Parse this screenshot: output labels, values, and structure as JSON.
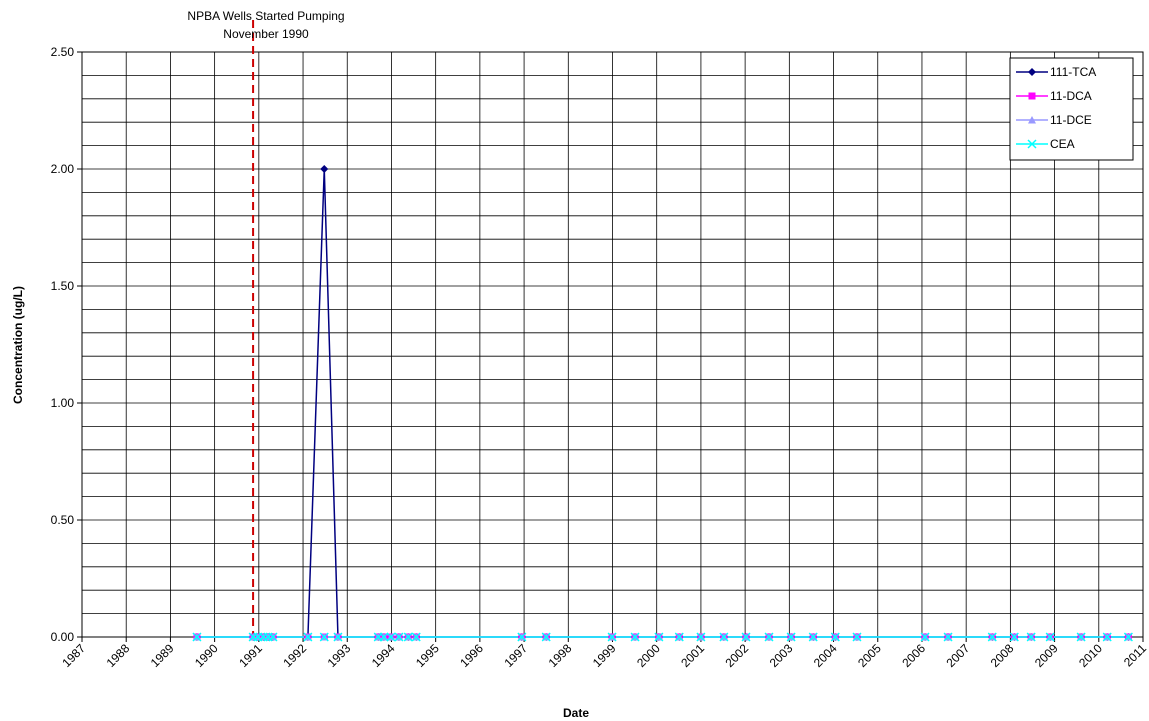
{
  "chart_data": {
    "type": "line",
    "xlabel": "Date",
    "ylabel": "Concentration (ug/L)",
    "x": [
      1989.6,
      1990.87,
      1990.98,
      1991.1,
      1991.21,
      1991.32,
      1992.11,
      1992.48,
      1992.79,
      1993.7,
      1993.83,
      1993.99,
      1994.17,
      1994.38,
      1994.56,
      1996.95,
      1997.5,
      1998.99,
      1999.51,
      2000.05,
      2000.51,
      2001.0,
      2001.52,
      2002.02,
      2002.54,
      2003.04,
      2003.54,
      2004.04,
      2004.53,
      2006.07,
      2006.59,
      2007.59,
      2008.09,
      2008.47,
      2008.9,
      2009.6,
      2010.19,
      2010.67
    ],
    "series": [
      {
        "name": "111-TCA",
        "color": "#000080",
        "marker": "diamond",
        "values": [
          0,
          0,
          0,
          0,
          0,
          0,
          0,
          2,
          0,
          0,
          0,
          0,
          0,
          0,
          0,
          0,
          0,
          0,
          0,
          0,
          0,
          0,
          0,
          0,
          0,
          0,
          0,
          0,
          0,
          0,
          0,
          0,
          0,
          0,
          0,
          0,
          0,
          0
        ]
      },
      {
        "name": "11-DCA",
        "color": "#ff00ff",
        "marker": "square",
        "values": [
          0,
          0,
          0,
          0,
          0,
          0,
          0,
          0,
          0,
          0,
          0,
          0,
          0,
          0,
          0,
          0,
          0,
          0,
          0,
          0,
          0,
          0,
          0,
          0,
          0,
          0,
          0,
          0,
          0,
          0,
          0,
          0,
          0,
          0,
          0,
          0,
          0,
          0
        ]
      },
      {
        "name": "11-DCE",
        "color": "#9999ff",
        "marker": "triangle",
        "values": [
          0,
          0,
          0,
          0,
          0,
          0,
          0,
          0,
          0,
          0,
          0,
          0,
          0,
          0,
          0,
          0,
          0,
          0,
          0,
          0,
          0,
          0,
          0,
          0,
          0,
          0,
          0,
          0,
          0,
          0,
          0,
          0,
          0,
          0,
          0,
          0,
          0,
          0
        ]
      },
      {
        "name": "CEA",
        "color": "#00ffff",
        "marker": "x",
        "values": [
          0,
          0,
          0,
          0,
          0,
          0,
          0,
          0,
          0,
          0,
          0,
          0,
          0,
          0,
          0,
          0,
          0,
          0,
          0,
          0,
          0,
          0,
          0,
          0,
          0,
          0,
          0,
          0,
          0,
          0,
          0,
          0,
          0,
          0,
          0,
          0,
          0,
          0
        ]
      }
    ],
    "xlim": [
      1987,
      2011
    ],
    "xticks": [
      1987,
      1988,
      1989,
      1990,
      1991,
      1992,
      1993,
      1994,
      1995,
      1996,
      1997,
      1998,
      1999,
      2000,
      2001,
      2002,
      2003,
      2004,
      2005,
      2006,
      2007,
      2008,
      2009,
      2010,
      2011
    ],
    "ylim": [
      0,
      2.5
    ],
    "yticks": [
      {
        "value": 0,
        "label": "0.00"
      },
      {
        "value": 0.5,
        "label": "0.50"
      },
      {
        "value": 1,
        "label": "1.00"
      },
      {
        "value": 1.5,
        "label": "1.50"
      },
      {
        "value": 2,
        "label": "2.00"
      },
      {
        "value": 2.5,
        "label": "2.50"
      }
    ],
    "yminor": [
      0.1,
      0.2,
      0.3,
      0.4,
      0.6,
      0.7,
      0.8,
      0.9,
      1.1,
      1.2,
      1.3,
      1.4,
      1.6,
      1.7,
      1.8,
      1.9,
      2.1,
      2.2,
      2.3,
      2.4
    ],
    "grid": true,
    "legend": "upper right",
    "vline": {
      "x": 1990.87,
      "color": "#cc0000",
      "label": [
        "NPBA Wells Started Pumping",
        "November 1990"
      ]
    }
  }
}
